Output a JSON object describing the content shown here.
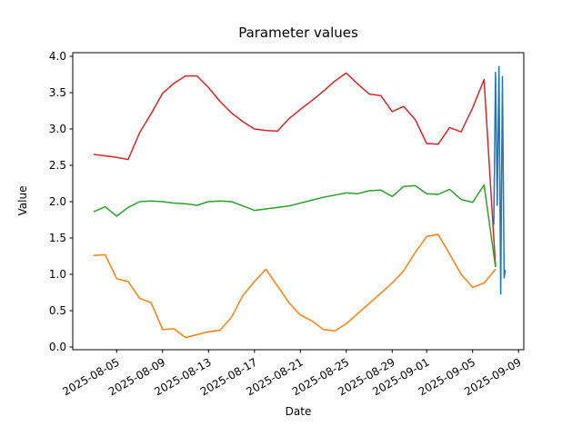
{
  "chart_data": {
    "type": "line",
    "title": "Parameter values",
    "xlabel": "Date",
    "ylabel": "Value",
    "grid": false,
    "legend": "none",
    "ylim": [
      -0.04,
      4.05
    ],
    "yticks": [
      0.0,
      0.5,
      1.0,
      1.5,
      2.0,
      2.5,
      3.0,
      3.5,
      4.0
    ],
    "xtick_labels": [
      "2025-08-05",
      "2025-08-09",
      "2025-08-13",
      "2025-08-17",
      "2025-08-21",
      "2025-08-25",
      "2025-08-29",
      "2025-09-01",
      "2025-09-05",
      "2025-09-09"
    ],
    "x_dates": [
      "2025-08-03",
      "2025-08-04",
      "2025-08-05",
      "2025-08-06",
      "2025-08-07",
      "2025-08-08",
      "2025-08-09",
      "2025-08-10",
      "2025-08-11",
      "2025-08-12",
      "2025-08-13",
      "2025-08-14",
      "2025-08-15",
      "2025-08-16",
      "2025-08-17",
      "2025-08-18",
      "2025-08-19",
      "2025-08-20",
      "2025-08-21",
      "2025-08-22",
      "2025-08-23",
      "2025-08-24",
      "2025-08-25",
      "2025-08-26",
      "2025-08-27",
      "2025-08-28",
      "2025-08-29",
      "2025-08-30",
      "2025-08-31",
      "2025-09-01",
      "2025-09-02",
      "2025-09-03",
      "2025-09-04",
      "2025-09-05",
      "2025-09-06",
      "2025-09-07"
    ],
    "series": [
      {
        "name": "red",
        "color": "#d62728",
        "values": [
          2.65,
          2.63,
          2.61,
          2.58,
          2.95,
          3.21,
          3.49,
          3.63,
          3.73,
          3.73,
          3.57,
          3.38,
          3.22,
          3.1,
          3.0,
          2.98,
          2.97,
          3.14,
          3.27,
          3.39,
          3.52,
          3.66,
          3.77,
          3.62,
          3.48,
          3.46,
          3.24,
          3.31,
          3.13,
          2.8,
          2.79,
          3.02,
          2.96,
          3.29,
          3.68,
          1.11
        ]
      },
      {
        "name": "green",
        "color": "#2ca02c",
        "values": [
          1.86,
          1.93,
          1.8,
          1.92,
          2.0,
          2.01,
          2.0,
          1.98,
          1.97,
          1.95,
          2.0,
          2.01,
          2.0,
          1.94,
          1.88,
          1.9,
          1.92,
          1.94,
          1.98,
          2.02,
          2.06,
          2.09,
          2.12,
          2.11,
          2.15,
          2.16,
          2.07,
          2.21,
          2.22,
          2.11,
          2.1,
          2.17,
          2.03,
          1.99,
          2.23,
          1.1
        ]
      },
      {
        "name": "orange",
        "color": "#ff7f0e",
        "values": [
          1.26,
          1.27,
          0.94,
          0.9,
          0.67,
          0.61,
          0.24,
          0.25,
          0.13,
          0.17,
          0.21,
          0.23,
          0.41,
          0.71,
          0.9,
          1.07,
          0.84,
          0.61,
          0.44,
          0.36,
          0.24,
          0.22,
          0.32,
          0.46,
          0.6,
          0.74,
          0.88,
          1.05,
          1.3,
          1.52,
          1.55,
          1.28,
          1.0,
          0.82,
          0.88,
          1.07
        ]
      },
      {
        "name": "blue",
        "color": "#1f77b4",
        "x_day_offsets": [
          34.85,
          35.0,
          35.15,
          35.3,
          35.45,
          35.6,
          35.75,
          35.85
        ],
        "values": [
          1.68,
          3.78,
          1.95,
          3.86,
          0.73,
          3.72,
          0.95,
          1.06
        ]
      }
    ]
  }
}
